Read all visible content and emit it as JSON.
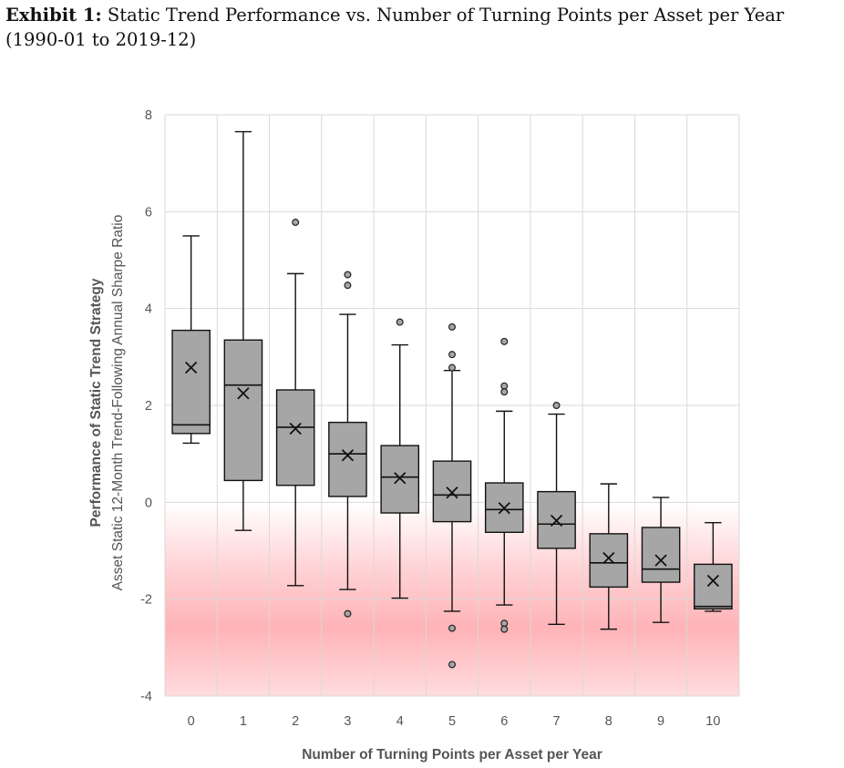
{
  "exhibit": {
    "label": "Exhibit 1:",
    "title": "Static Trend Performance vs. Number of Turning Points per Asset per Year (1990-01 to 2019-12)"
  },
  "chart_data": {
    "type": "boxplot",
    "xlabel": "Number of Turning Points per Asset per Year",
    "ylabel": "Performance of Static Trend Strategy",
    "ylabel_sub": "Asset Static 12-Month Trend-Following Annual Sharpe Ratio",
    "ylim": [
      -4,
      8
    ],
    "yticks": [
      -4,
      -2,
      0,
      2,
      4,
      6,
      8
    ],
    "grid": true,
    "negative_region_shading": "#ff9aa0",
    "box_color": "#a6a6a6",
    "categories": [
      "0",
      "1",
      "2",
      "3",
      "4",
      "5",
      "6",
      "7",
      "8",
      "9",
      "10"
    ],
    "boxes": [
      {
        "category": "0",
        "whisker_low": 1.22,
        "q1": 1.42,
        "median": 1.6,
        "q3": 3.55,
        "whisker_high": 5.5,
        "mean": 2.78,
        "outliers": []
      },
      {
        "category": "1",
        "whisker_low": -0.58,
        "q1": 0.45,
        "median": 2.42,
        "q3": 3.35,
        "whisker_high": 7.65,
        "mean": 2.25,
        "outliers": []
      },
      {
        "category": "2",
        "whisker_low": -1.72,
        "q1": 0.35,
        "median": 1.55,
        "q3": 2.32,
        "whisker_high": 4.72,
        "mean": 1.52,
        "outliers": [
          5.78
        ]
      },
      {
        "category": "3",
        "whisker_low": -1.8,
        "q1": 0.12,
        "median": 1.0,
        "q3": 1.65,
        "whisker_high": 3.88,
        "mean": 0.97,
        "outliers": [
          4.7,
          4.48,
          -2.3
        ]
      },
      {
        "category": "4",
        "whisker_low": -1.98,
        "q1": -0.22,
        "median": 0.52,
        "q3": 1.17,
        "whisker_high": 3.25,
        "mean": 0.5,
        "outliers": [
          3.72
        ]
      },
      {
        "category": "5",
        "whisker_low": -2.25,
        "q1": -0.4,
        "median": 0.15,
        "q3": 0.85,
        "whisker_high": 2.72,
        "mean": 0.2,
        "outliers": [
          3.62,
          3.05,
          2.78,
          -2.6,
          -3.35
        ]
      },
      {
        "category": "6",
        "whisker_low": -2.12,
        "q1": -0.62,
        "median": -0.15,
        "q3": 0.4,
        "whisker_high": 1.88,
        "mean": -0.12,
        "outliers": [
          3.32,
          2.4,
          2.28,
          -2.5,
          -2.62
        ]
      },
      {
        "category": "7",
        "whisker_low": -2.52,
        "q1": -0.95,
        "median": -0.45,
        "q3": 0.22,
        "whisker_high": 1.82,
        "mean": -0.38,
        "outliers": [
          2.0
        ]
      },
      {
        "category": "8",
        "whisker_low": -2.62,
        "q1": -1.75,
        "median": -1.25,
        "q3": -0.65,
        "whisker_high": 0.38,
        "mean": -1.15,
        "outliers": []
      },
      {
        "category": "9",
        "whisker_low": -2.48,
        "q1": -1.65,
        "median": -1.38,
        "q3": -0.52,
        "whisker_high": 0.1,
        "mean": -1.2,
        "outliers": []
      },
      {
        "category": "10",
        "whisker_low": -2.25,
        "q1": -2.2,
        "median": -2.15,
        "q3": -1.28,
        "whisker_high": -0.42,
        "mean": -1.62,
        "outliers": []
      }
    ]
  }
}
